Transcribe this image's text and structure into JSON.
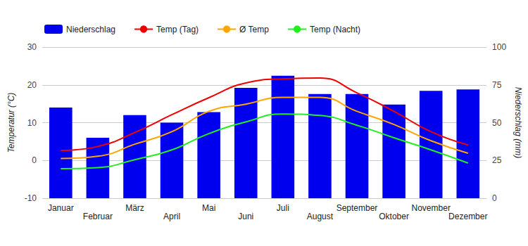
{
  "chart_data": {
    "type": "bar",
    "categories": [
      "Januar",
      "Februar",
      "März",
      "April",
      "Mai",
      "Juni",
      "Juli",
      "August",
      "September",
      "Oktober",
      "November",
      "Dezember"
    ],
    "series": [
      {
        "name": "Niederschlag",
        "type": "bar",
        "axis": "y2",
        "color": "#0000ee",
        "values": [
          60,
          40,
          55,
          50,
          57,
          73,
          81,
          69,
          69,
          62,
          71,
          72
        ]
      },
      {
        "name": "Temp (Tag)",
        "type": "line",
        "color": "#ee0000",
        "values": [
          2.6,
          3.7,
          7.4,
          12.1,
          16.6,
          20.5,
          21.6,
          21.8,
          17.9,
          13.0,
          7.6,
          4.1
        ]
      },
      {
        "name": "Ø Temp",
        "type": "line",
        "color": "#ffa500",
        "values": [
          0.5,
          1.1,
          4.3,
          7.6,
          13.0,
          14.9,
          16.7,
          16.7,
          13.0,
          9.5,
          5.2,
          1.9
        ]
      },
      {
        "name": "Temp (Nacht)",
        "type": "line",
        "color": "#22ee22",
        "values": [
          -2.2,
          -1.9,
          0.2,
          2.8,
          7.1,
          10.2,
          12.3,
          11.9,
          9.3,
          6.0,
          2.8,
          -0.7
        ]
      }
    ],
    "y_label": "Temperatur (°C)",
    "y2_label": "Niederschlag (mm)",
    "ylim": [
      -10,
      30
    ],
    "yticks": [
      -10,
      0,
      10,
      20,
      30
    ],
    "y2lim": [
      0,
      100
    ],
    "y2ticks": [
      0,
      25,
      50,
      75,
      100
    ],
    "grid": true,
    "legend": "top-left"
  }
}
